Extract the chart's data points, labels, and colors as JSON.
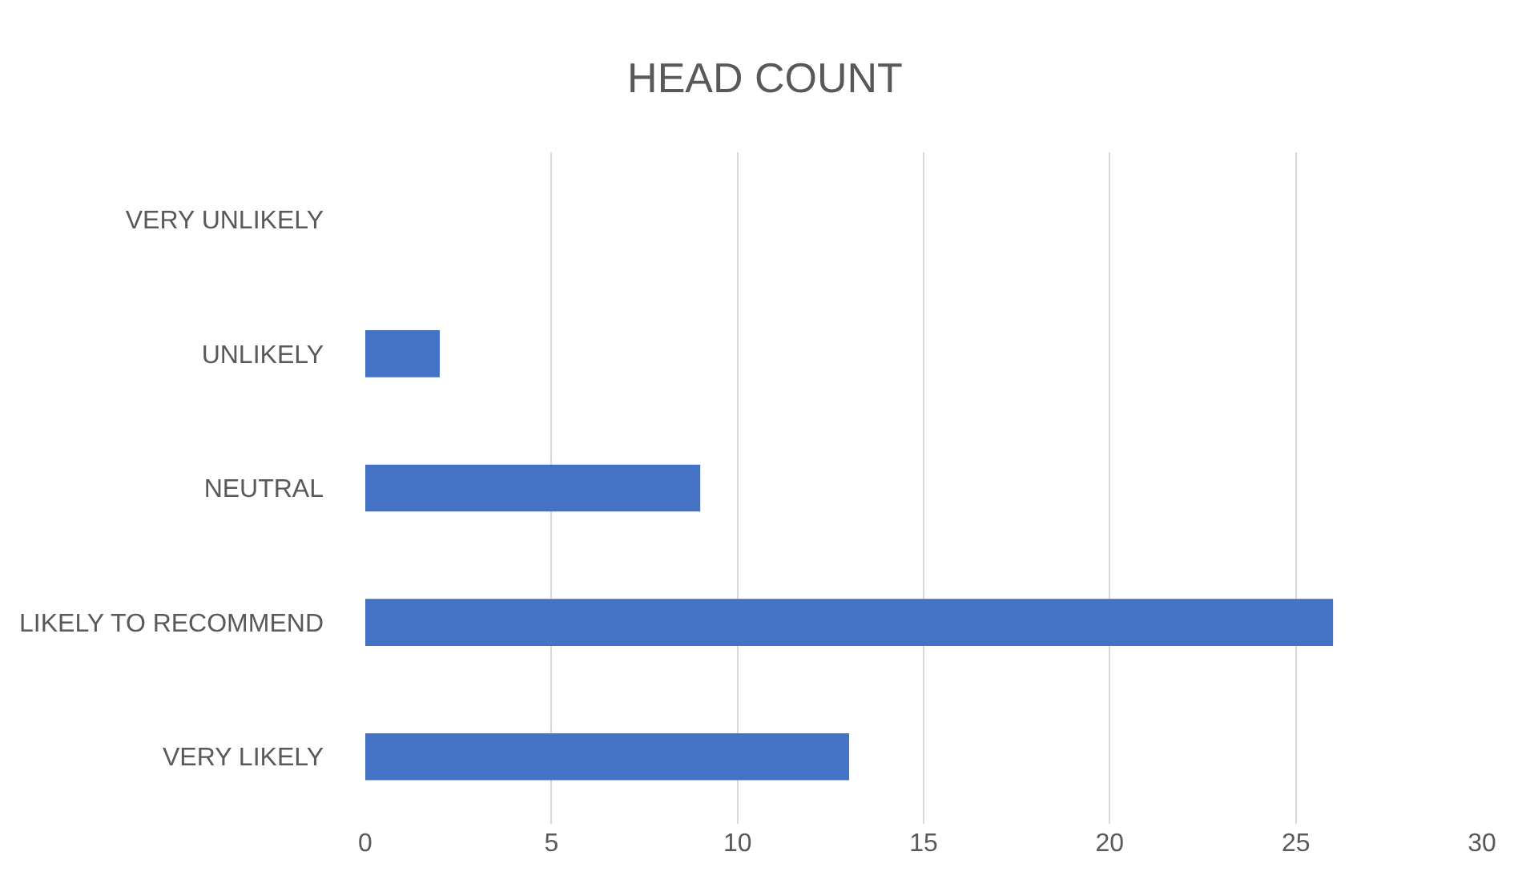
{
  "chart_data": {
    "type": "bar",
    "orientation": "horizontal",
    "title": "HEAD COUNT",
    "categories": [
      "VERY UNLIKELY",
      "UNLIKELY",
      "NEUTRAL",
      "LIKELY TO RECOMMEND",
      "VERY LIKELY"
    ],
    "values": [
      0,
      2,
      9,
      26,
      13
    ],
    "color": "#4472c4",
    "xlim": [
      0,
      30
    ],
    "xticks": [
      0,
      5,
      10,
      15,
      20,
      25,
      30
    ],
    "grid": "x",
    "legend": false
  }
}
